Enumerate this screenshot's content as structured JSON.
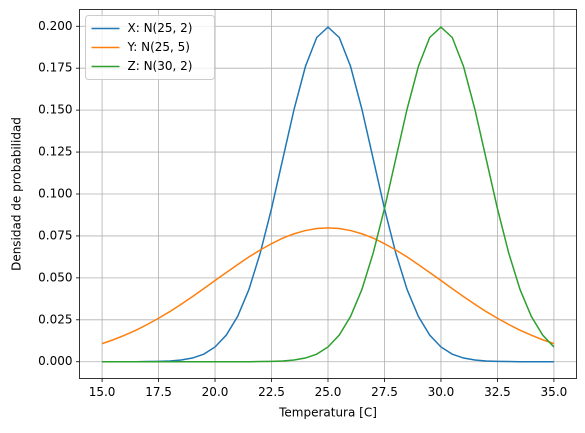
{
  "chart_data": {
    "type": "line",
    "xlabel": "Temperatura [C]",
    "ylabel": "Densidad de probabilidad",
    "x": [
      15,
      15.5,
      16,
      16.5,
      17,
      17.5,
      18,
      18.5,
      19,
      19.5,
      20,
      20.5,
      21,
      21.5,
      22,
      22.5,
      23,
      23.5,
      24,
      24.5,
      25,
      25.5,
      26,
      26.5,
      27,
      27.5,
      28,
      28.5,
      29,
      29.5,
      30,
      30.5,
      31,
      31.5,
      32,
      32.5,
      33,
      33.5,
      34,
      34.5,
      35
    ],
    "series": [
      {
        "name": "X: N(25, 2)",
        "color": "#1f77b4",
        "values": [
          0,
          0,
          0,
          0,
          0.0001,
          0.0002,
          0.0004,
          0.001,
          0.0022,
          0.0045,
          0.0088,
          0.0159,
          0.027,
          0.0431,
          0.0648,
          0.0913,
          0.121,
          0.1506,
          0.176,
          0.1933,
          0.1995,
          0.1933,
          0.176,
          0.1506,
          0.121,
          0.0913,
          0.0648,
          0.0431,
          0.027,
          0.0159,
          0.0088,
          0.0045,
          0.0022,
          0.001,
          0.0004,
          0.0002,
          0.0001,
          0,
          0,
          0,
          0
        ]
      },
      {
        "name": "Y: N(25, 5)",
        "color": "#ff7f0e",
        "values": [
          0.0108,
          0.0131,
          0.0158,
          0.0188,
          0.0222,
          0.0259,
          0.0299,
          0.0343,
          0.0388,
          0.0436,
          0.0484,
          0.0532,
          0.0579,
          0.0625,
          0.0666,
          0.0704,
          0.0737,
          0.0763,
          0.0782,
          0.0794,
          0.0798,
          0.0794,
          0.0782,
          0.0763,
          0.0737,
          0.0704,
          0.0666,
          0.0625,
          0.0579,
          0.0532,
          0.0484,
          0.0436,
          0.0388,
          0.0343,
          0.0299,
          0.0259,
          0.0222,
          0.0188,
          0.0158,
          0.0131,
          0.0108
        ]
      },
      {
        "name": "Z: N(30, 2)",
        "color": "#2ca02c",
        "values": [
          0,
          0,
          0,
          0,
          0,
          0,
          0,
          0,
          0,
          0,
          0,
          0,
          0,
          0,
          0.0001,
          0.0002,
          0.0004,
          0.001,
          0.0022,
          0.0045,
          0.0088,
          0.0159,
          0.027,
          0.0431,
          0.0648,
          0.0913,
          0.121,
          0.1506,
          0.176,
          0.1933,
          0.1995,
          0.1933,
          0.176,
          0.1506,
          0.121,
          0.0913,
          0.0648,
          0.0431,
          0.027,
          0.0159,
          0.0088
        ]
      }
    ],
    "xlim": [
      14,
      36
    ],
    "ylim": [
      -0.01,
      0.21
    ],
    "xticks": [
      {
        "value": 15,
        "label": "15.0"
      },
      {
        "value": 17.5,
        "label": "17.5"
      },
      {
        "value": 20,
        "label": "20.0"
      },
      {
        "value": 22.5,
        "label": "22.5"
      },
      {
        "value": 25,
        "label": "25.0"
      },
      {
        "value": 27.5,
        "label": "27.5"
      },
      {
        "value": 30,
        "label": "30.0"
      },
      {
        "value": 32.5,
        "label": "32.5"
      },
      {
        "value": 35,
        "label": "35.0"
      }
    ],
    "yticks": [
      {
        "value": 0,
        "label": "0.000"
      },
      {
        "value": 0.025,
        "label": "0.025"
      },
      {
        "value": 0.05,
        "label": "0.050"
      },
      {
        "value": 0.075,
        "label": "0.075"
      },
      {
        "value": 0.1,
        "label": "0.100"
      },
      {
        "value": 0.125,
        "label": "0.125"
      },
      {
        "value": 0.15,
        "label": "0.150"
      },
      {
        "value": 0.175,
        "label": "0.175"
      },
      {
        "value": 0.2,
        "label": "0.200"
      }
    ],
    "grid": true,
    "legend": "upper left"
  }
}
